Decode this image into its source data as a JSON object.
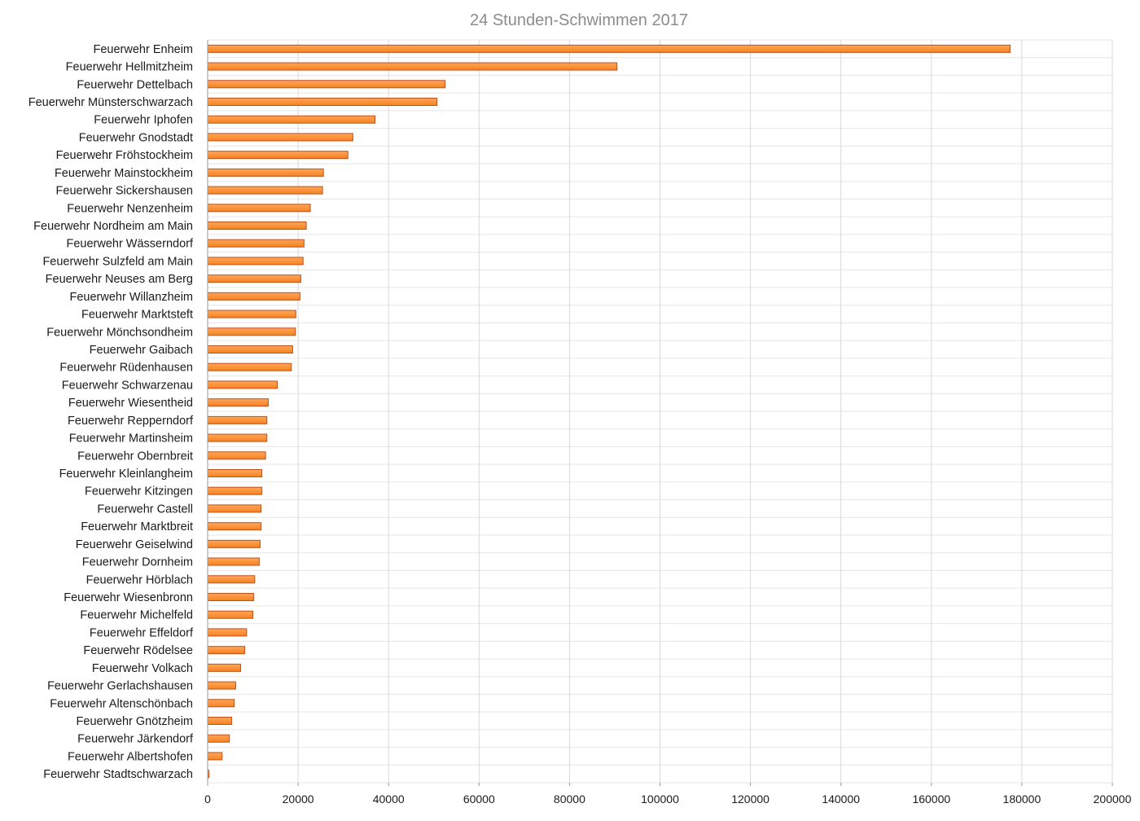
{
  "chart_data": {
    "type": "bar",
    "orientation": "horizontal",
    "title": "24 Stunden-Schwimmen 2017",
    "xlabel": "",
    "ylabel": "",
    "xlim": [
      0,
      200000
    ],
    "x_ticks": [
      "0",
      "20000",
      "40000",
      "60000",
      "80000",
      "100000",
      "120000",
      "140000",
      "160000",
      "180000",
      "200000"
    ],
    "grid": true,
    "legend": "none",
    "bar_color": "#f58220",
    "bar_color_light": "#ffa65a",
    "bar_border": "#c0501a",
    "categories": [
      "Feuerwehr Enheim",
      "Feuerwehr Hellmitzheim",
      "Feuerwehr Dettelbach",
      "Feuerwehr Münsterschwarzach",
      "Feuerwehr Iphofen",
      "Feuerwehr Gnodstadt",
      "Feuerwehr Fröhstockheim",
      "Feuerwehr Mainstockheim",
      "Feuerwehr Sickershausen",
      "Feuerwehr Nenzenheim",
      "Feuerwehr Nordheim am Main",
      "Feuerwehr Wässerndorf",
      "Feuerwehr Sulzfeld am Main",
      "Feuerwehr Neuses am Berg",
      "Feuerwehr Willanzheim",
      "Feuerwehr Marktsteft",
      "Feuerwehr Mönchsondheim",
      "Feuerwehr Gaibach",
      "Feuerwehr Rüdenhausen",
      "Feuerwehr Schwarzenau",
      "Feuerwehr Wiesentheid",
      "Feuerwehr Repperndorf",
      "Feuerwehr Martinsheim",
      "Feuerwehr Obernbreit",
      "Feuerwehr Kleinlangheim",
      "Feuerwehr Kitzingen",
      "Feuerwehr Castell",
      "Feuerwehr Marktbreit",
      "Feuerwehr Geiselwind",
      "Feuerwehr Dornheim",
      "Feuerwehr Hörblach",
      "Feuerwehr Wiesenbronn",
      "Feuerwehr Michelfeld",
      "Feuerwehr Effeldorf",
      "Feuerwehr Rödelsee",
      "Feuerwehr Volkach",
      "Feuerwehr Gerlachshausen",
      "Feuerwehr Altenschönbach",
      "Feuerwehr Gnötzheim",
      "Feuerwehr Järkendorf",
      "Feuerwehr Albertshofen",
      "Feuerwehr Stadtschwarzach"
    ],
    "values": [
      177400,
      90500,
      52500,
      50700,
      37000,
      32100,
      31000,
      25600,
      25400,
      22700,
      21800,
      21300,
      21100,
      20600,
      20400,
      19500,
      19400,
      18800,
      18500,
      15400,
      13400,
      13100,
      13100,
      12800,
      12000,
      12000,
      11800,
      11800,
      11600,
      11400,
      10400,
      10200,
      10000,
      8600,
      8200,
      7300,
      6200,
      5900,
      5300,
      4800,
      3200,
      300
    ]
  }
}
